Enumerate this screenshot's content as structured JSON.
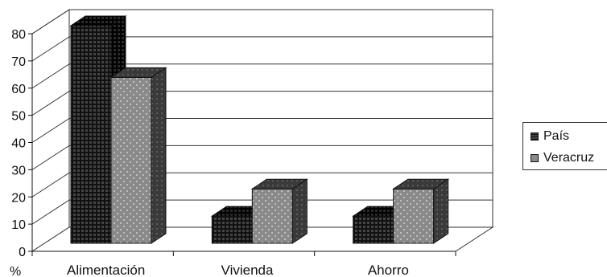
{
  "chart_data": {
    "type": "bar",
    "style": "3d-clustered",
    "categories": [
      "Alimentación",
      "Vivienda",
      "Ahorro"
    ],
    "series": [
      {
        "name": "País",
        "values": [
          80,
          10,
          10
        ],
        "color": "#1a1a1a",
        "pattern": "grid"
      },
      {
        "name": "Veracruz",
        "values": [
          61,
          20,
          20
        ],
        "color": "#8a8a8a",
        "pattern": "dots"
      }
    ],
    "ylim": [
      0,
      80
    ],
    "yticks": [
      "0",
      "10",
      "20",
      "30",
      "40",
      "50",
      "60",
      "70",
      "80"
    ],
    "ylabel_unit": "%",
    "grid": true,
    "legend_position": "right"
  }
}
